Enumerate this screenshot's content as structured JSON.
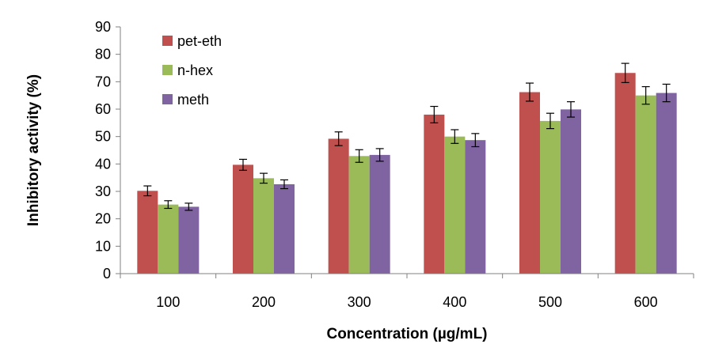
{
  "chart_data": {
    "type": "bar",
    "title": "",
    "xlabel": "Concentration (µg/mL)",
    "ylabel": "Inhibitory activity (%)",
    "categories": [
      "100",
      "200",
      "300",
      "400",
      "500",
      "600"
    ],
    "ylim": [
      0,
      90
    ],
    "yticks": [
      0,
      10,
      20,
      30,
      40,
      50,
      60,
      70,
      80,
      90
    ],
    "grid": false,
    "legend_position": "top-left",
    "series": [
      {
        "name": "pet-eth",
        "color": "#c0504d",
        "values": [
          30.2,
          39.7,
          49.2,
          58.0,
          66.2,
          73.2
        ],
        "errors": [
          1.8,
          2.0,
          2.5,
          3.0,
          3.3,
          3.5
        ]
      },
      {
        "name": "n-hex",
        "color": "#9bbb59",
        "values": [
          25.2,
          34.8,
          42.9,
          50.0,
          55.7,
          65.0
        ],
        "errors": [
          1.4,
          1.8,
          2.3,
          2.5,
          2.8,
          3.2
        ]
      },
      {
        "name": "meth",
        "color": "#8064a2",
        "values": [
          24.4,
          32.6,
          43.3,
          48.7,
          59.9,
          65.9
        ],
        "errors": [
          1.3,
          1.6,
          2.3,
          2.4,
          2.8,
          3.2
        ]
      }
    ]
  }
}
